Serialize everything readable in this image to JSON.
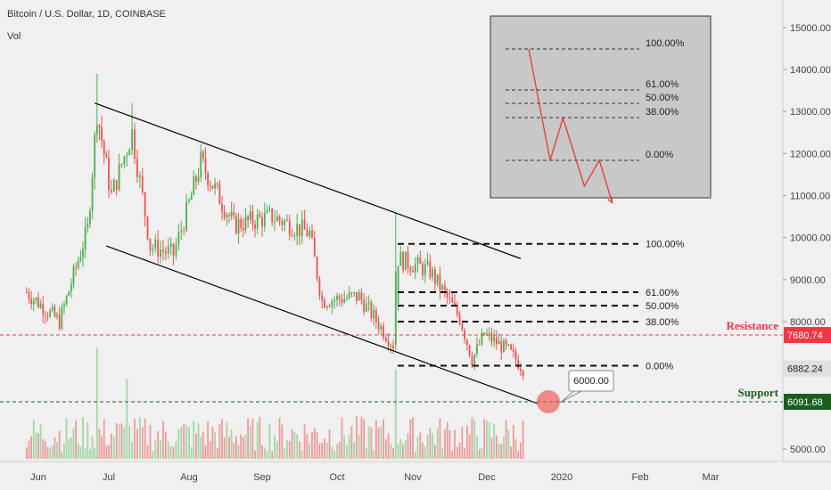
{
  "header": {
    "title": "Bitcoin / U.S. Dollar, 1D, COINBASE",
    "indicator": "Vol"
  },
  "colors": {
    "up": "#26a69a",
    "candle_up": "#4caf50",
    "candle_down": "#ef5350",
    "resistance": "#f23645",
    "support": "#1b5e20",
    "price_badge": "#e0e0e0",
    "channel": "#000000"
  },
  "chart_data": {
    "type": "candlestick",
    "title": "Bitcoin / U.S. Dollar, 1D, COINBASE",
    "x_ticks": [
      "Jun",
      "Jul",
      "Aug",
      "Sep",
      "Oct",
      "Nov",
      "Dec",
      "2020",
      "Feb",
      "Mar"
    ],
    "y_ticks": [
      "15000.00",
      "14000.00",
      "13000.00",
      "12000.00",
      "11000.00",
      "10000.00",
      "9000.00",
      "8000.00",
      "5000.00"
    ],
    "ylim": [
      4900,
      15300
    ],
    "candles_close_approx": [
      {
        "date": "2019-05-27",
        "close": 8700
      },
      {
        "date": "2019-06-10",
        "close": 8000
      },
      {
        "date": "2019-06-22",
        "close": 10200
      },
      {
        "date": "2019-06-26",
        "close": 13000
      },
      {
        "date": "2019-07-02",
        "close": 11000
      },
      {
        "date": "2019-07-10",
        "close": 12500
      },
      {
        "date": "2019-07-17",
        "close": 9800
      },
      {
        "date": "2019-07-26",
        "close": 9600
      },
      {
        "date": "2019-08-06",
        "close": 11800
      },
      {
        "date": "2019-08-20",
        "close": 10300
      },
      {
        "date": "2019-09-05",
        "close": 10500
      },
      {
        "date": "2019-09-20",
        "close": 10100
      },
      {
        "date": "2019-09-25",
        "close": 8500
      },
      {
        "date": "2019-10-10",
        "close": 8600
      },
      {
        "date": "2019-10-24",
        "close": 7450
      },
      {
        "date": "2019-10-26",
        "close": 9500
      },
      {
        "date": "2019-11-08",
        "close": 9200
      },
      {
        "date": "2019-11-20",
        "close": 8100
      },
      {
        "date": "2019-11-25",
        "close": 7100
      },
      {
        "date": "2019-11-30",
        "close": 7700
      },
      {
        "date": "2019-12-10",
        "close": 7300
      },
      {
        "date": "2019-12-16",
        "close": 6882
      }
    ],
    "price_labels": {
      "resistance": {
        "text": "Resistance",
        "value": "7680.74"
      },
      "current": {
        "value": "6882.24"
      },
      "support": {
        "text": "Support",
        "value": "6091.68"
      }
    },
    "fib_levels": [
      "100.00%",
      "61.00%",
      "50.00%",
      "38.00%",
      "0.00%"
    ],
    "fib_prices": [
      9850,
      8700,
      8380,
      8000,
      6950
    ],
    "callout": "6000.00",
    "channel_upper": [
      {
        "date": "2019-06-25",
        "price": 13200
      },
      {
        "date": "2019-12-15",
        "price": 9500
      }
    ],
    "channel_lower": [
      {
        "date": "2019-06-30",
        "price": 9800
      },
      {
        "date": "2019-12-22",
        "price": 6050
      }
    ],
    "inset_fib_levels": [
      "100.00%",
      "61.00%",
      "50.00%",
      "38.00%",
      "0.00%"
    ],
    "inset_path": [
      [
        0.0,
        1.0
      ],
      [
        0.5,
        0.0
      ],
      [
        0.8,
        0.38
      ],
      [
        1.3,
        -0.23
      ],
      [
        1.65,
        0.0
      ],
      [
        1.95,
        -0.38
      ]
    ]
  }
}
